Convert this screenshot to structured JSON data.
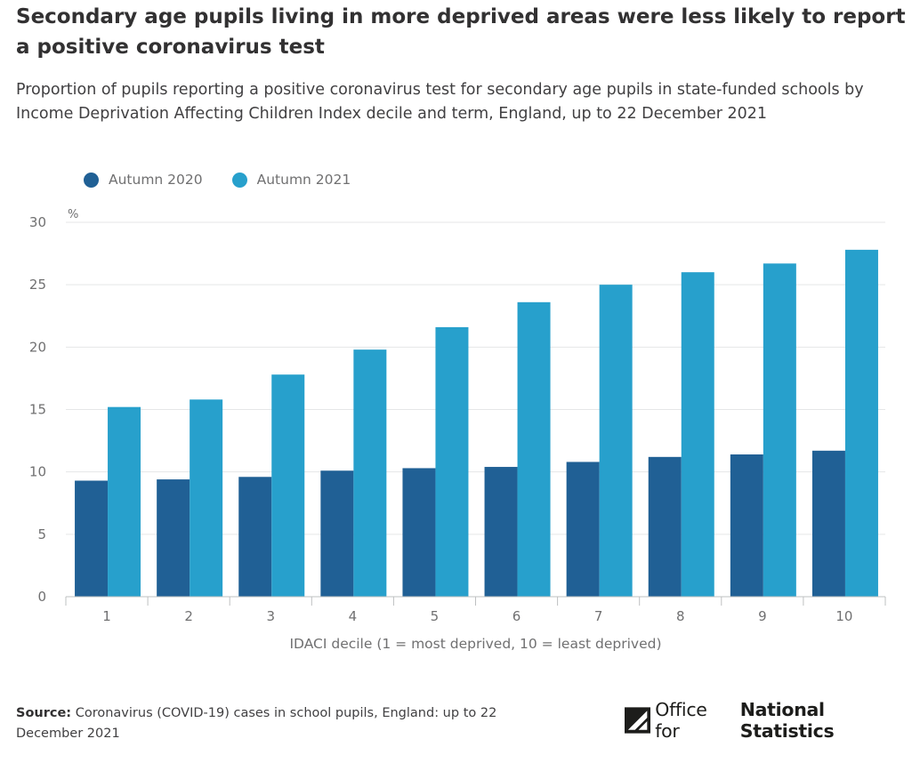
{
  "title": "Secondary age pupils living in more deprived areas were less likely to report a positive coronavirus test",
  "subtitle": "Proportion of pupils reporting a positive coronavirus test for secondary age pupils in state-funded schools by Income Deprivation Affecting Children Index decile and term, England, up to 22 December 2021",
  "source": {
    "label": "Source:",
    "text": "Coronavirus (COVID-19) cases in school pupils, England: up to 22 December 2021"
  },
  "logo": {
    "light_text": "Office for",
    "bold_text": "National Statistics"
  },
  "colors": {
    "autumn_2020": "#206095",
    "autumn_2021": "#27a0cc",
    "gridline": "#e5e6e7",
    "axis": "#bec0c1",
    "tick_text": "#707071"
  },
  "chart_data": {
    "type": "bar",
    "categories": [
      "1",
      "2",
      "3",
      "4",
      "5",
      "6",
      "7",
      "8",
      "9",
      "10"
    ],
    "series": [
      {
        "name": "Autumn 2020",
        "color": "#206095",
        "values": [
          9.3,
          9.4,
          9.6,
          10.1,
          10.3,
          10.4,
          10.8,
          11.2,
          11.4,
          11.7
        ]
      },
      {
        "name": "Autumn 2021",
        "color": "#27a0cc",
        "values": [
          15.2,
          15.8,
          17.8,
          19.8,
          21.6,
          23.6,
          25.0,
          26.0,
          26.7,
          27.8
        ]
      }
    ],
    "y_unit_label": "%",
    "xlabel": "IDACI decile (1 = most deprived, 10 = least deprived)",
    "ylabel": "",
    "ylim": [
      0,
      30
    ],
    "yticks": [
      0,
      5,
      10,
      15,
      20,
      25,
      30
    ],
    "grid": true,
    "legend": "top-left"
  }
}
